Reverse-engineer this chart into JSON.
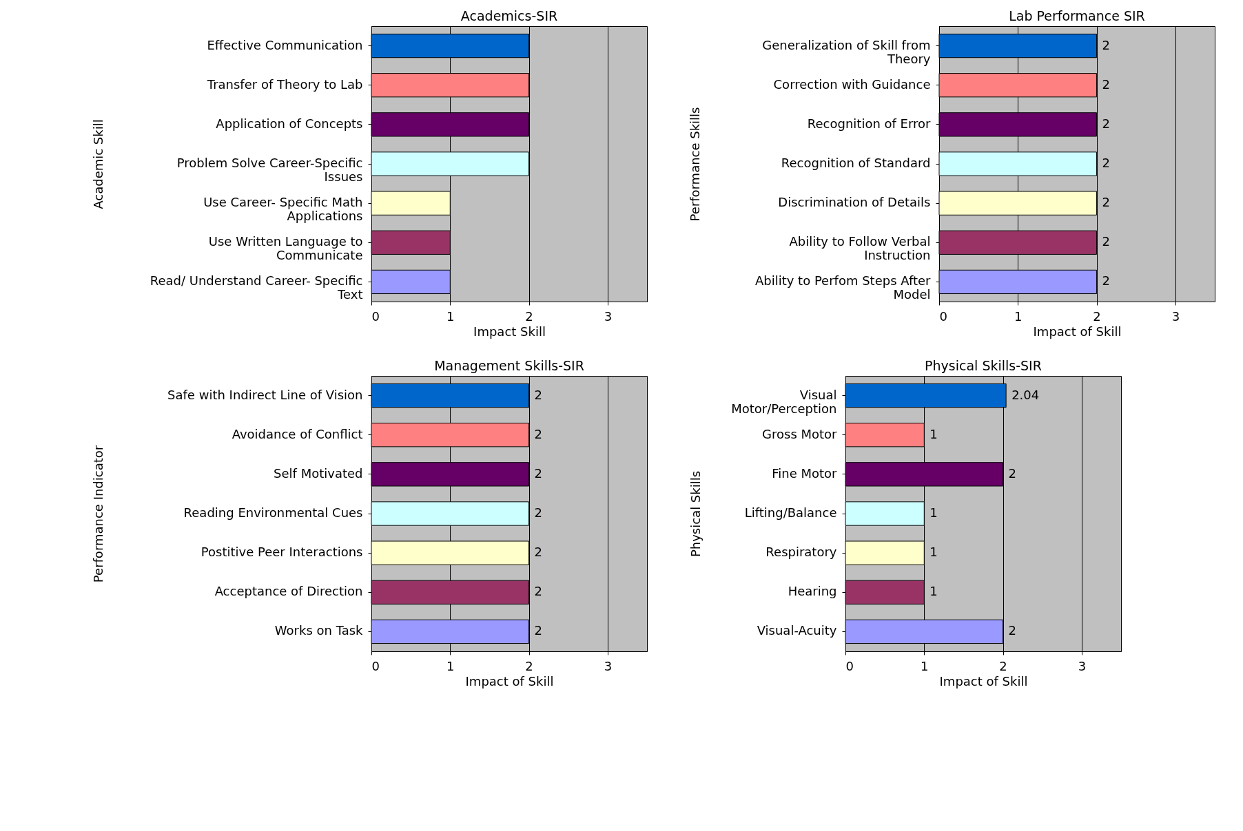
{
  "chart_data": [
    {
      "type": "bar",
      "orientation": "horizontal",
      "title": "Academics-SIR",
      "xlabel": "Impact Skill",
      "ylabel": "Academic Skill",
      "categories": [
        "Effective Communication",
        "Transfer of Theory to Lab",
        "Application of Concepts",
        "Problem Solve Career-Specific Issues",
        "Use Career- Specific Math Applications",
        "Use Written Language to Communicate",
        "Read/ Understand Career- Specific Text"
      ],
      "values": [
        2,
        2,
        2,
        2,
        1,
        1,
        1
      ],
      "colors": [
        "#0066cc",
        "#ff8080",
        "#660066",
        "#ccffff",
        "#ffffcc",
        "#993366",
        "#9999ff"
      ],
      "xlim": [
        0,
        3.5
      ],
      "xticks": [
        0,
        1,
        2,
        3
      ],
      "grid": "x"
    },
    {
      "type": "bar",
      "orientation": "horizontal",
      "title": "Lab Performance SIR",
      "xlabel": "Impact of Skill",
      "ylabel": "Performance Skills",
      "categories": [
        "Generalization of Skill from Theory",
        "Correction with Guidance",
        "Recognition of  Error",
        "Recognition of Standard",
        "Discrimination of Details",
        "Ability to Follow Verbal Instruction",
        "Ability to Perfom Steps After Model"
      ],
      "values": [
        2,
        2,
        2,
        2,
        2,
        2,
        2
      ],
      "colors": [
        "#0066cc",
        "#ff8080",
        "#660066",
        "#ccffff",
        "#ffffcc",
        "#993366",
        "#9999ff"
      ],
      "xlim": [
        0,
        3.5
      ],
      "xticks": [
        0,
        1,
        2,
        3
      ],
      "grid": "x",
      "data_labels": true
    },
    {
      "type": "bar",
      "orientation": "horizontal",
      "title": "Management Skills-SIR",
      "xlabel": "Impact of Skill",
      "ylabel": "Performance Indicator",
      "categories": [
        "Safe with Indirect Line of Vision",
        "Avoidance of Conflict",
        "Self Motivated",
        "Reading Environmental Cues",
        "Postitive Peer Interactions",
        "Acceptance of  Direction",
        "Works on Task"
      ],
      "values": [
        2,
        2,
        2,
        2,
        2,
        2,
        2
      ],
      "colors": [
        "#0066cc",
        "#ff8080",
        "#660066",
        "#ccffff",
        "#ffffcc",
        "#993366",
        "#9999ff"
      ],
      "xlim": [
        0,
        3.5
      ],
      "xticks": [
        0,
        1,
        2,
        3
      ],
      "grid": "x",
      "data_labels": true
    },
    {
      "type": "bar",
      "orientation": "horizontal",
      "title": "Physical Skills-SIR",
      "xlabel": "Impact of Skill",
      "ylabel": "Physical Skills",
      "categories": [
        "Visual Motor/Perception",
        "Gross Motor",
        "Fine Motor",
        "Lifting/Balance",
        "Respiratory",
        "Hearing",
        "Visual-Acuity"
      ],
      "values": [
        2.04,
        1,
        2,
        1,
        1,
        1,
        2
      ],
      "colors": [
        "#0066cc",
        "#ff8080",
        "#660066",
        "#ccffff",
        "#ffffcc",
        "#993366",
        "#9999ff"
      ],
      "xlim": [
        0,
        3.5
      ],
      "xticks": [
        0,
        1,
        2,
        3
      ],
      "grid": "x",
      "data_labels": true
    }
  ]
}
